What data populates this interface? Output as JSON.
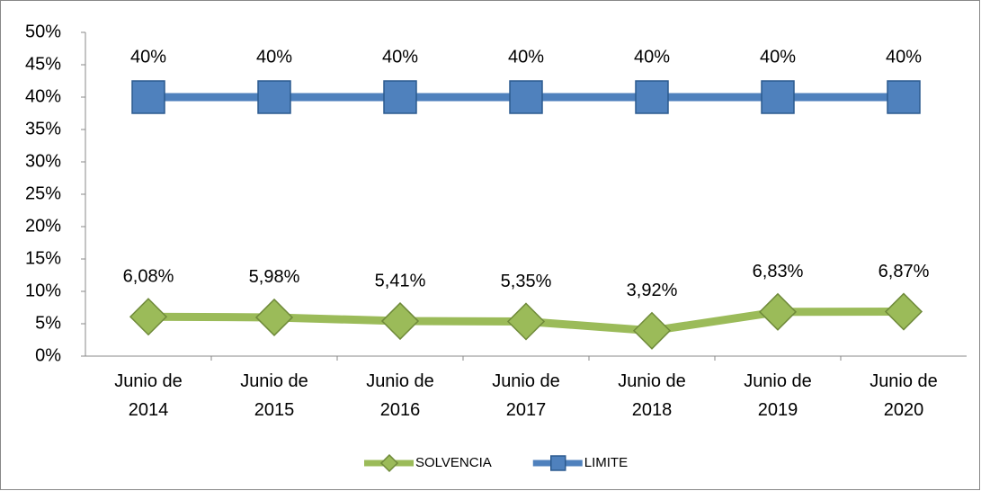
{
  "chart_data": {
    "type": "line",
    "categories": [
      "Junio de 2014",
      "Junio de 2015",
      "Junio de 2016",
      "Junio de 2017",
      "Junio de 2018",
      "Junio de 2019",
      "Junio de 2020"
    ],
    "series": [
      {
        "name": "SOLVENCIA",
        "color": "#9bbb59",
        "marker": "diamond",
        "values": [
          6.08,
          5.98,
          5.41,
          5.35,
          3.92,
          6.83,
          6.87
        ],
        "value_labels": [
          "6,08%",
          "5,98%",
          "5,41%",
          "5,35%",
          "3,92%",
          "6,83%",
          "6,87%"
        ]
      },
      {
        "name": "LIMITE",
        "color": "#4f81bd",
        "marker": "square",
        "values": [
          40,
          40,
          40,
          40,
          40,
          40,
          40
        ],
        "value_labels": [
          "40%",
          "40%",
          "40%",
          "40%",
          "40%",
          "40%",
          "40%"
        ]
      }
    ],
    "ylim": [
      0,
      50
    ],
    "yticks": [
      {
        "value": 0,
        "label": "0%"
      },
      {
        "value": 5,
        "label": "5%"
      },
      {
        "value": 10,
        "label": "10%"
      },
      {
        "value": 15,
        "label": "15%"
      },
      {
        "value": 20,
        "label": "20%"
      },
      {
        "value": 25,
        "label": "25%"
      },
      {
        "value": 30,
        "label": "30%"
      },
      {
        "value": 35,
        "label": "35%"
      },
      {
        "value": 40,
        "label": "40%"
      },
      {
        "value": 45,
        "label": "45%"
      },
      {
        "value": 50,
        "label": "50%"
      }
    ],
    "legend": "bottom"
  }
}
